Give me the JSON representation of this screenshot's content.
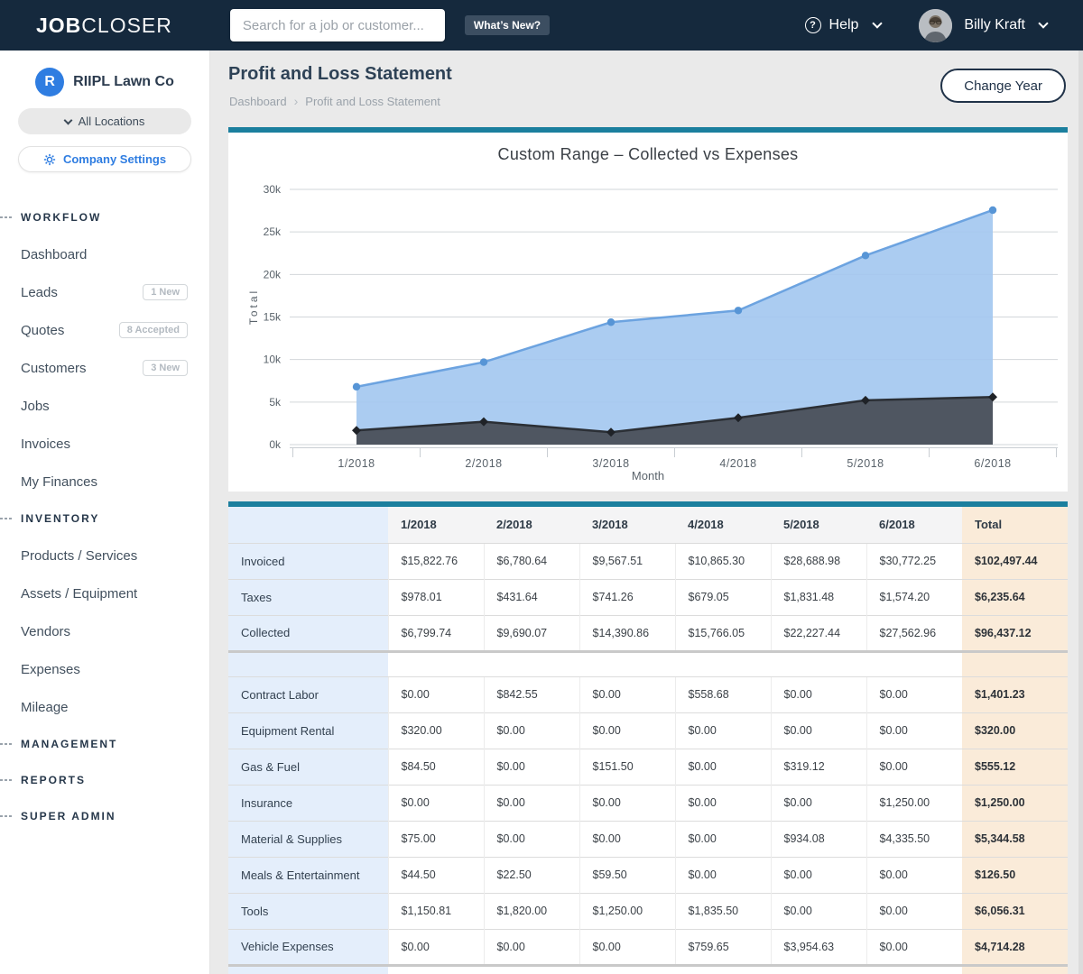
{
  "colors": {
    "navbar_navy": "#15293d",
    "teal_accent": "#1b7f9e",
    "brand_blue": "#2f7de1",
    "collected_line": "#6ca3e0",
    "collected_fill": "#a2c6ef",
    "expenses_line": "#2b2f35",
    "expenses_fill": "#4a4f58",
    "table_label_bg": "#e4eefb",
    "table_total_bg": "#faebd9"
  },
  "glyphs": {
    "breadcrumb_sep": "›",
    "help_icon": "?"
  },
  "topnav": {
    "logo_bold": "JOB",
    "logo_light": "CLOSER",
    "search_placeholder": "Search for a job or customer...",
    "whats_new_label": "What’s New?",
    "help_label": "Help",
    "user_name": "Billy Kraft"
  },
  "sidebar": {
    "company_initial": "R",
    "company_name": "RIIPL Lawn Co",
    "locations_label": "All Locations",
    "settings_label": "Company Settings",
    "sections": [
      {
        "label": "WORKFLOW",
        "items": [
          {
            "label": "Dashboard"
          },
          {
            "label": "Leads",
            "badge": "1 New"
          },
          {
            "label": "Quotes",
            "badge": "8 Accepted"
          },
          {
            "label": "Customers",
            "badge": "3 New"
          },
          {
            "label": "Jobs"
          },
          {
            "label": "Invoices"
          },
          {
            "label": "My Finances"
          }
        ]
      },
      {
        "label": "INVENTORY",
        "items": [
          {
            "label": "Products / Services"
          },
          {
            "label": "Assets / Equipment"
          },
          {
            "label": "Vendors"
          },
          {
            "label": "Expenses"
          },
          {
            "label": "Mileage"
          }
        ]
      },
      {
        "label": "MANAGEMENT",
        "items": []
      },
      {
        "label": "REPORTS",
        "items": []
      },
      {
        "label": "SUPER ADMIN",
        "items": []
      }
    ]
  },
  "page": {
    "title": "Profit and Loss Statement",
    "breadcrumb": [
      "Dashboard",
      "Profit and Loss Statement"
    ],
    "change_year_label": "Change Year"
  },
  "chart_data": {
    "type": "area",
    "title": "Custom Range – Collected vs Expenses",
    "xlabel": "Month",
    "ylabel": "Total",
    "categories": [
      "1/2018",
      "2/2018",
      "3/2018",
      "4/2018",
      "5/2018",
      "6/2018"
    ],
    "series": [
      {
        "name": "Collected",
        "color": "#6ca3e0",
        "point_color": "#5795d6",
        "fill": "#a2c6ef",
        "marker": "circle",
        "values": [
          6799.74,
          9690.07,
          14390.86,
          15766.05,
          22227.44,
          27562.96
        ]
      },
      {
        "name": "Expenses",
        "color": "#2b2f35",
        "point_color": "#1f2227",
        "fill": "#4a4f58",
        "marker": "diamond",
        "values": [
          1674.81,
          2685.05,
          1461.0,
          3153.83,
          5207.83,
          5585.5
        ]
      }
    ],
    "ylim": [
      0,
      30000
    ],
    "ytick_step": 5000,
    "ytick_labels": [
      "0k",
      "5k",
      "10k",
      "15k",
      "20k",
      "25k",
      "30k"
    ],
    "grid": true,
    "legend": "none"
  },
  "table": {
    "columns": [
      "",
      "1/2018",
      "2/2018",
      "3/2018",
      "4/2018",
      "5/2018",
      "6/2018",
      "Total"
    ],
    "revenue_rows": [
      {
        "label": "Invoiced",
        "values": [
          "$15,822.76",
          "$6,780.64",
          "$9,567.51",
          "$10,865.30",
          "$28,688.98",
          "$30,772.25"
        ],
        "total": "$102,497.44"
      },
      {
        "label": "Taxes",
        "values": [
          "$978.01",
          "$431.64",
          "$741.26",
          "$679.05",
          "$1,831.48",
          "$1,574.20"
        ],
        "total": "$6,235.64"
      },
      {
        "label": "Collected",
        "values": [
          "$6,799.74",
          "$9,690.07",
          "$14,390.86",
          "$15,766.05",
          "$22,227.44",
          "$27,562.96"
        ],
        "total": "$96,437.12"
      }
    ],
    "expense_rows": [
      {
        "label": "Contract Labor",
        "values": [
          "$0.00",
          "$842.55",
          "$0.00",
          "$558.68",
          "$0.00",
          "$0.00"
        ],
        "total": "$1,401.23"
      },
      {
        "label": "Equipment Rental",
        "values": [
          "$320.00",
          "$0.00",
          "$0.00",
          "$0.00",
          "$0.00",
          "$0.00"
        ],
        "total": "$320.00"
      },
      {
        "label": "Gas & Fuel",
        "values": [
          "$84.50",
          "$0.00",
          "$151.50",
          "$0.00",
          "$319.12",
          "$0.00"
        ],
        "total": "$555.12"
      },
      {
        "label": "Insurance",
        "values": [
          "$0.00",
          "$0.00",
          "$0.00",
          "$0.00",
          "$0.00",
          "$1,250.00"
        ],
        "total": "$1,250.00"
      },
      {
        "label": "Material & Supplies",
        "values": [
          "$75.00",
          "$0.00",
          "$0.00",
          "$0.00",
          "$934.08",
          "$4,335.50"
        ],
        "total": "$5,344.58"
      },
      {
        "label": "Meals & Entertainment",
        "values": [
          "$44.50",
          "$22.50",
          "$59.50",
          "$0.00",
          "$0.00",
          "$0.00"
        ],
        "total": "$126.50"
      },
      {
        "label": "Tools",
        "values": [
          "$1,150.81",
          "$1,820.00",
          "$1,250.00",
          "$1,835.50",
          "$0.00",
          "$0.00"
        ],
        "total": "$6,056.31"
      },
      {
        "label": "Vehicle Expenses",
        "values": [
          "$0.00",
          "$0.00",
          "$0.00",
          "$759.65",
          "$3,954.63",
          "$0.00"
        ],
        "total": "$4,714.28"
      }
    ]
  }
}
